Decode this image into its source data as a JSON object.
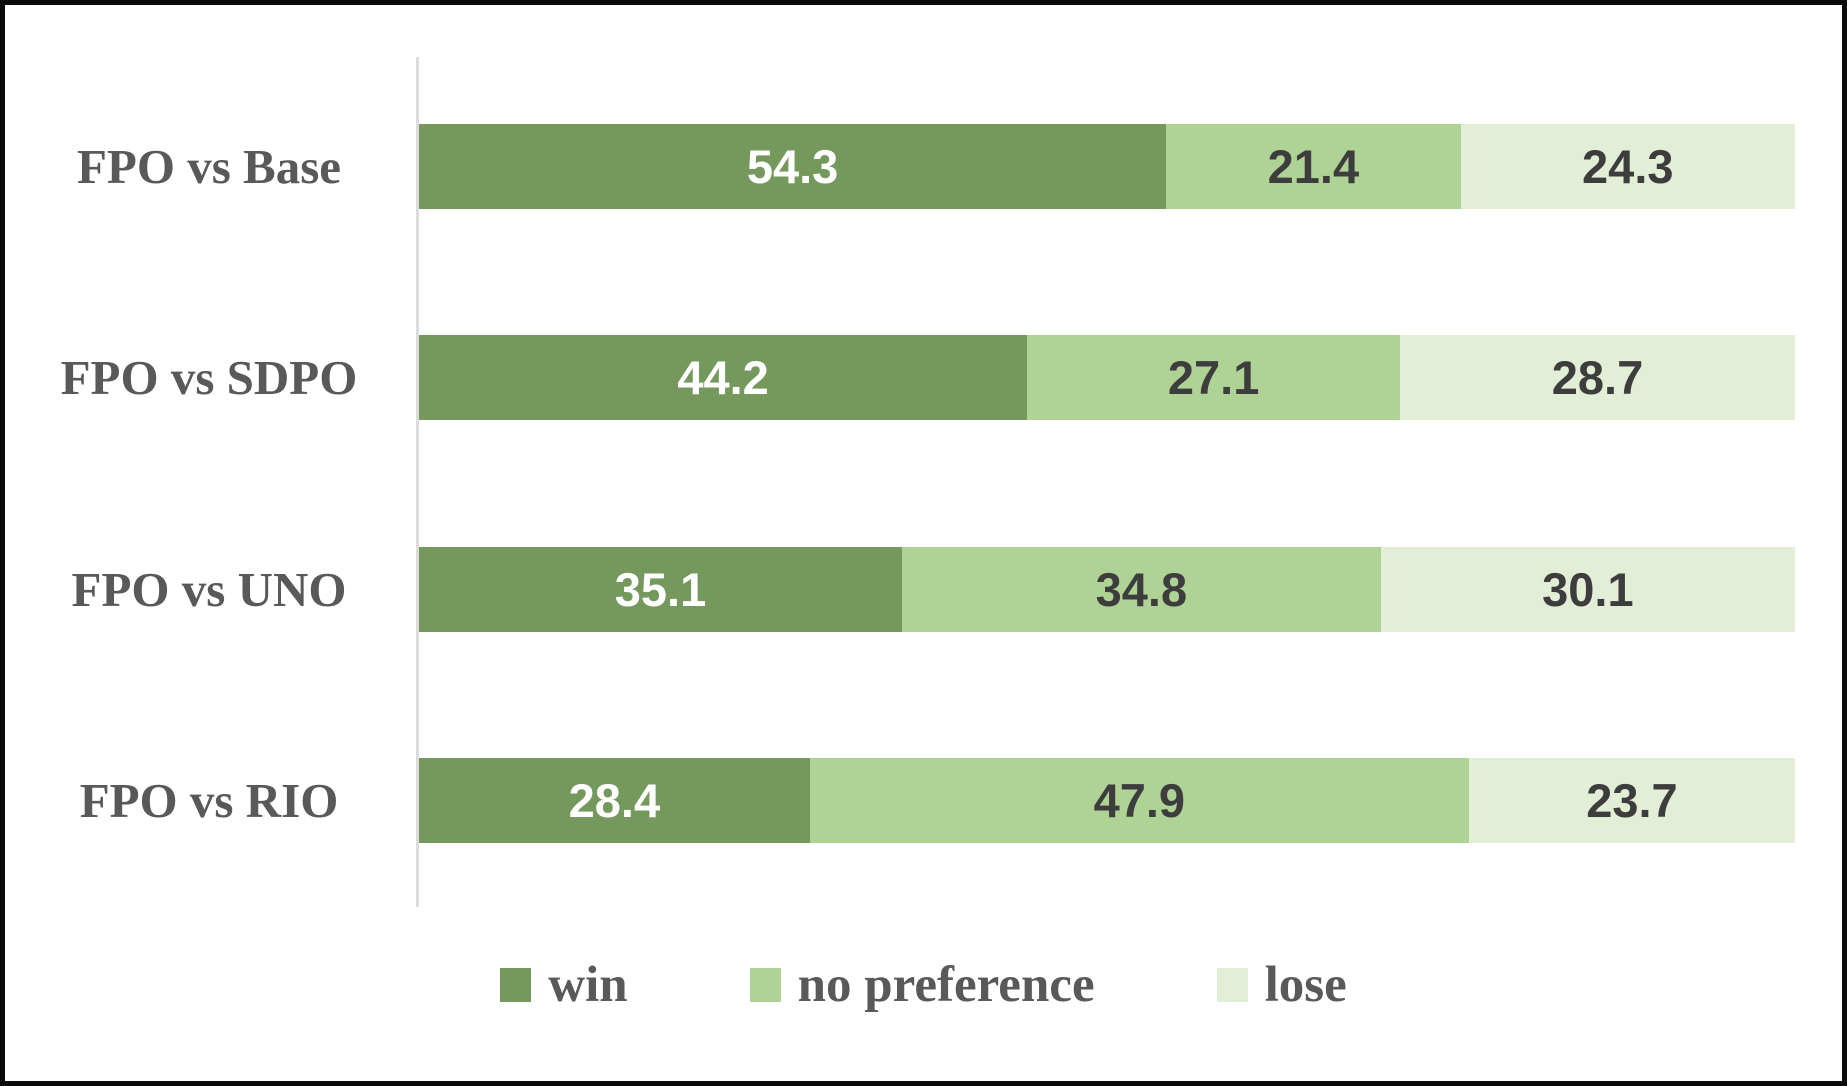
{
  "chart_data": {
    "type": "bar",
    "variant": "horizontal-stacked",
    "title": "",
    "xlabel": "",
    "ylabel": "",
    "xlim": [
      0,
      100
    ],
    "grid": false,
    "legend_position": "bottom-center",
    "axis_line_color": "#dcdcdc",
    "label_color": "#595959",
    "categories": [
      "FPO vs Base",
      "FPO vs SDPO",
      "FPO vs UNO",
      "FPO vs RIO"
    ],
    "series": [
      {
        "name": "win",
        "color": "#75995d",
        "value_label_color": "#ffffff",
        "values": [
          54.3,
          44.2,
          35.1,
          28.4
        ]
      },
      {
        "name": "no preference",
        "color": "#afd295",
        "value_label_color": "#3d3d3d",
        "values": [
          21.4,
          27.1,
          34.8,
          47.9
        ]
      },
      {
        "name": "lose",
        "color": "#e2eed6",
        "value_label_color": "#3d3d3d",
        "values": [
          24.3,
          28.7,
          30.1,
          23.7
        ]
      }
    ]
  }
}
